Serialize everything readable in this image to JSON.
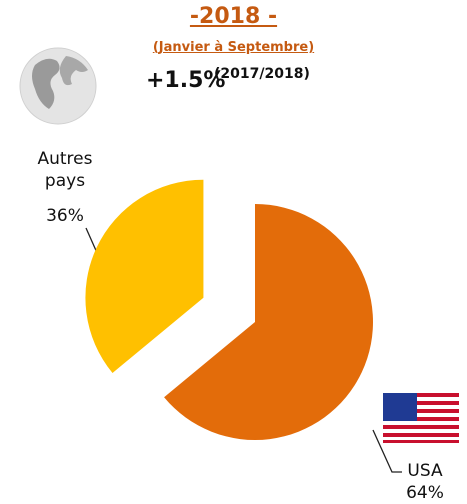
{
  "chart_data": {
    "type": "pie",
    "title": "-2018 -",
    "subtitle": "(Janvier à Septembre)",
    "annotations": [
      "+1.5%",
      "(2017/2018)"
    ],
    "categories": [
      "Autres pays",
      "USA"
    ],
    "values": [
      36,
      64
    ],
    "value_labels": [
      "36%",
      "64%"
    ],
    "colors": [
      "#ffc000",
      "#e36c0a"
    ]
  }
}
